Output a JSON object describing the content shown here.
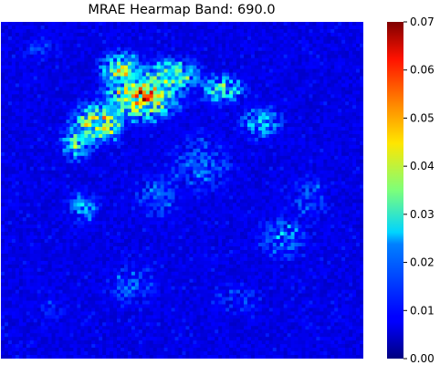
{
  "chart_data": {
    "type": "heatmap",
    "title": "MRAE Hearmap Band: 690.0",
    "xlabel": "",
    "ylabel": "",
    "colormap": "jet",
    "colorbar": {
      "range": [
        0.0,
        0.07
      ],
      "ticks": [
        0.0,
        0.01,
        0.02,
        0.03,
        0.04,
        0.05,
        0.06,
        0.07
      ],
      "tick_labels": [
        "0.00",
        "0.01",
        "0.02",
        "0.03",
        "0.04",
        "0.05",
        "0.06",
        "0.07"
      ]
    },
    "grid": false,
    "hotspots": [
      {
        "cx": 0.39,
        "cy": 0.22,
        "rx": 0.1,
        "ry": 0.07,
        "value": 0.052
      },
      {
        "cx": 0.27,
        "cy": 0.3,
        "rx": 0.07,
        "ry": 0.06,
        "value": 0.045
      },
      {
        "cx": 0.46,
        "cy": 0.16,
        "rx": 0.09,
        "ry": 0.05,
        "value": 0.04
      },
      {
        "cx": 0.33,
        "cy": 0.14,
        "rx": 0.06,
        "ry": 0.05,
        "value": 0.038
      },
      {
        "cx": 0.61,
        "cy": 0.2,
        "rx": 0.07,
        "ry": 0.05,
        "value": 0.03
      },
      {
        "cx": 0.72,
        "cy": 0.3,
        "rx": 0.07,
        "ry": 0.06,
        "value": 0.024
      },
      {
        "cx": 0.21,
        "cy": 0.36,
        "rx": 0.05,
        "ry": 0.06,
        "value": 0.03
      },
      {
        "cx": 0.23,
        "cy": 0.55,
        "rx": 0.05,
        "ry": 0.06,
        "value": 0.022
      },
      {
        "cx": 0.55,
        "cy": 0.42,
        "rx": 0.12,
        "ry": 0.12,
        "value": 0.016
      },
      {
        "cx": 0.43,
        "cy": 0.52,
        "rx": 0.09,
        "ry": 0.1,
        "value": 0.015
      },
      {
        "cx": 0.85,
        "cy": 0.52,
        "rx": 0.07,
        "ry": 0.08,
        "value": 0.016
      },
      {
        "cx": 0.78,
        "cy": 0.64,
        "rx": 0.09,
        "ry": 0.08,
        "value": 0.018
      },
      {
        "cx": 0.36,
        "cy": 0.78,
        "rx": 0.1,
        "ry": 0.08,
        "value": 0.016
      },
      {
        "cx": 0.11,
        "cy": 0.08,
        "rx": 0.08,
        "ry": 0.05,
        "value": 0.012
      },
      {
        "cx": 0.65,
        "cy": 0.82,
        "rx": 0.1,
        "ry": 0.07,
        "value": 0.014
      },
      {
        "cx": 0.13,
        "cy": 0.86,
        "rx": 0.08,
        "ry": 0.08,
        "value": 0.011
      }
    ]
  }
}
